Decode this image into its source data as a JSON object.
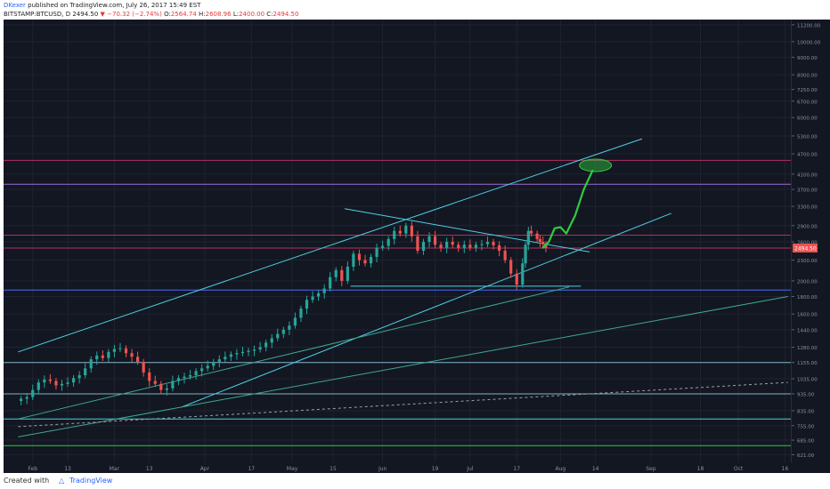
{
  "header": {
    "author": "DKexer",
    "published": "published on TradingView.com, July 26, 2017 15:49 EST",
    "symbol": "BITSTAMP:BTCUSD, D",
    "last": "2494.50",
    "change": "▼ −70.32 (−2.74%)",
    "o_label": "O:",
    "open": "2564.74",
    "h_label": "H:",
    "high": "2608.96",
    "l_label": "L:",
    "low": "2400.00",
    "c_label": "C:",
    "close": "2494.50"
  },
  "footer": {
    "created": "Created with",
    "brand": "TradingView"
  },
  "colors": {
    "background": "#131722",
    "up": "#26a69a",
    "down": "#ef5350",
    "channel": "#4dd0e1",
    "projection": "#2ecc40"
  },
  "chart_data": {
    "type": "candlestick",
    "scale": "log",
    "y_ticks": [
      621.0,
      685.0,
      755.0,
      835.0,
      935.0,
      1035.0,
      1155.0,
      1280.0,
      1440.0,
      1600.0,
      1800.0,
      2000.0,
      2300.0,
      2600.0,
      2900.0,
      3300.0,
      3700.0,
      4100.0,
      4700.0,
      5300.0,
      6000.0,
      6700.0,
      7250.0,
      8000.0,
      9000.0,
      10000.0,
      11200.0
    ],
    "y_tick_labels": [
      "621.00",
      "685.00",
      "755.00",
      "835.00",
      "935.00",
      "1035.00",
      "1155.00",
      "1280.00",
      "1440.00",
      "1600.00",
      "1800.00",
      "2000.00",
      "2300.00",
      "2600.00",
      "2900.00",
      "3300.00",
      "3700.00",
      "4100.00",
      "4700.00",
      "5300.00",
      "6000.00",
      "6700.00",
      "7250.00",
      "8000.00",
      "9000.00",
      "10000.00",
      "11200.00"
    ],
    "x_labels": [
      "Feb",
      "13",
      "Mar",
      "13",
      "Apr",
      "17",
      "May",
      "15",
      "Jun",
      "19",
      "Jul",
      "17",
      "Aug",
      "14",
      "Sep",
      "18",
      "Oct",
      "16"
    ],
    "x_label_days": [
      31,
      43,
      59,
      71,
      90,
      106,
      120,
      134,
      151,
      169,
      181,
      197,
      212,
      224,
      243,
      260,
      273,
      289
    ],
    "last_price": 2494.5,
    "last_price_label": "2494.50",
    "closes": [
      {
        "d": 27,
        "c": 905
      },
      {
        "d": 29,
        "c": 915
      },
      {
        "d": 31,
        "c": 960
      },
      {
        "d": 33,
        "c": 1010
      },
      {
        "d": 35,
        "c": 1030
      },
      {
        "d": 37,
        "c": 1020
      },
      {
        "d": 39,
        "c": 990
      },
      {
        "d": 41,
        "c": 1000
      },
      {
        "d": 43,
        "c": 1010
      },
      {
        "d": 45,
        "c": 1040
      },
      {
        "d": 47,
        "c": 1060
      },
      {
        "d": 49,
        "c": 1110
      },
      {
        "d": 51,
        "c": 1180
      },
      {
        "d": 53,
        "c": 1210
      },
      {
        "d": 55,
        "c": 1190
      },
      {
        "d": 57,
        "c": 1240
      },
      {
        "d": 59,
        "c": 1265
      },
      {
        "d": 61,
        "c": 1270
      },
      {
        "d": 63,
        "c": 1230
      },
      {
        "d": 65,
        "c": 1200
      },
      {
        "d": 67,
        "c": 1160
      },
      {
        "d": 69,
        "c": 1080
      },
      {
        "d": 71,
        "c": 1020
      },
      {
        "d": 73,
        "c": 1000
      },
      {
        "d": 75,
        "c": 960
      },
      {
        "d": 77,
        "c": 970
      },
      {
        "d": 79,
        "c": 1020
      },
      {
        "d": 81,
        "c": 1040
      },
      {
        "d": 83,
        "c": 1050
      },
      {
        "d": 85,
        "c": 1060
      },
      {
        "d": 87,
        "c": 1090
      },
      {
        "d": 89,
        "c": 1110
      },
      {
        "d": 91,
        "c": 1130
      },
      {
        "d": 93,
        "c": 1160
      },
      {
        "d": 95,
        "c": 1180
      },
      {
        "d": 97,
        "c": 1200
      },
      {
        "d": 99,
        "c": 1220
      },
      {
        "d": 101,
        "c": 1230
      },
      {
        "d": 103,
        "c": 1240
      },
      {
        "d": 105,
        "c": 1250
      },
      {
        "d": 107,
        "c": 1260
      },
      {
        "d": 109,
        "c": 1280
      },
      {
        "d": 111,
        "c": 1320
      },
      {
        "d": 113,
        "c": 1360
      },
      {
        "d": 115,
        "c": 1400
      },
      {
        "d": 117,
        "c": 1440
      },
      {
        "d": 119,
        "c": 1480
      },
      {
        "d": 121,
        "c": 1560
      },
      {
        "d": 123,
        "c": 1660
      },
      {
        "d": 125,
        "c": 1760
      },
      {
        "d": 127,
        "c": 1800
      },
      {
        "d": 129,
        "c": 1840
      },
      {
        "d": 131,
        "c": 1900
      },
      {
        "d": 133,
        "c": 2050
      },
      {
        "d": 135,
        "c": 2150
      },
      {
        "d": 137,
        "c": 2000
      },
      {
        "d": 139,
        "c": 2200
      },
      {
        "d": 141,
        "c": 2400
      },
      {
        "d": 143,
        "c": 2300
      },
      {
        "d": 145,
        "c": 2250
      },
      {
        "d": 147,
        "c": 2350
      },
      {
        "d": 149,
        "c": 2500
      },
      {
        "d": 151,
        "c": 2530
      },
      {
        "d": 153,
        "c": 2650
      },
      {
        "d": 155,
        "c": 2800
      },
      {
        "d": 157,
        "c": 2750
      },
      {
        "d": 159,
        "c": 2900
      },
      {
        "d": 161,
        "c": 2700
      },
      {
        "d": 163,
        "c": 2450
      },
      {
        "d": 165,
        "c": 2600
      },
      {
        "d": 167,
        "c": 2700
      },
      {
        "d": 169,
        "c": 2550
      },
      {
        "d": 171,
        "c": 2500
      },
      {
        "d": 173,
        "c": 2600
      },
      {
        "d": 175,
        "c": 2550
      },
      {
        "d": 177,
        "c": 2500
      },
      {
        "d": 179,
        "c": 2550
      },
      {
        "d": 181,
        "c": 2500
      },
      {
        "d": 183,
        "c": 2550
      },
      {
        "d": 185,
        "c": 2560
      },
      {
        "d": 187,
        "c": 2600
      },
      {
        "d": 189,
        "c": 2540
      },
      {
        "d": 191,
        "c": 2450
      },
      {
        "d": 193,
        "c": 2300
      },
      {
        "d": 195,
        "c": 2100
      },
      {
        "d": 197,
        "c": 1950
      },
      {
        "d": 199,
        "c": 2250
      },
      {
        "d": 200,
        "c": 2550
      },
      {
        "d": 201,
        "c": 2800
      },
      {
        "d": 202,
        "c": 2750
      },
      {
        "d": 204,
        "c": 2650
      },
      {
        "d": 205,
        "c": 2600
      },
      {
        "d": 206,
        "c": 2564
      },
      {
        "d": 207,
        "c": 2494.5
      }
    ],
    "horizontal_levels": [
      {
        "y": 4500,
        "color": "#b03060"
      },
      {
        "y": 3830,
        "color": "#9c6bd8"
      },
      {
        "y": 2720,
        "color": "#b03060"
      },
      {
        "y": 2494.5,
        "color": "#b03060"
      },
      {
        "y": 1880,
        "color": "#4a6cf7"
      },
      {
        "y": 1155,
        "color": "#7fb3c8"
      },
      {
        "y": 935,
        "color": "#7fb3c8"
      },
      {
        "y": 790,
        "color": "#4dd0e1"
      },
      {
        "y": 660,
        "color": "#2ecc40"
      }
    ],
    "trend_lines": [
      {
        "x1": 26,
        "y1": 1240,
        "x2": 240,
        "y2": 5200,
        "color": "#4dd0e1",
        "dash": false
      },
      {
        "x1": 82,
        "y1": 855,
        "x2": 250,
        "y2": 3150,
        "color": "#4dd0e1",
        "dash": false
      },
      {
        "x1": 138,
        "y1": 3250,
        "x2": 222,
        "y2": 2430,
        "color": "#4dd0e1",
        "dash": false
      },
      {
        "x1": 140,
        "y1": 1930,
        "x2": 219,
        "y2": 1930,
        "color": "#4dd0e1",
        "dash": false
      },
      {
        "x1": 26,
        "y1": 790,
        "x2": 215,
        "y2": 1920,
        "color": "#3fa88f",
        "dash": false
      },
      {
        "x1": 26,
        "y1": 700,
        "x2": 290,
        "y2": 1800,
        "color": "#3fa88f",
        "dash": false
      },
      {
        "x1": 26,
        "y1": 750,
        "x2": 290,
        "y2": 1010,
        "color": "#9aa0a6",
        "dash": true
      }
    ],
    "projection_path": [
      [
        206,
        2500
      ],
      [
        208,
        2600
      ],
      [
        210,
        2850
      ],
      [
        212,
        2870
      ],
      [
        214,
        2750
      ],
      [
        217,
        3100
      ],
      [
        220,
        3700
      ],
      [
        223,
        4200
      ]
    ],
    "target_ellipse": {
      "cx": 224,
      "cy": 4350
    }
  }
}
